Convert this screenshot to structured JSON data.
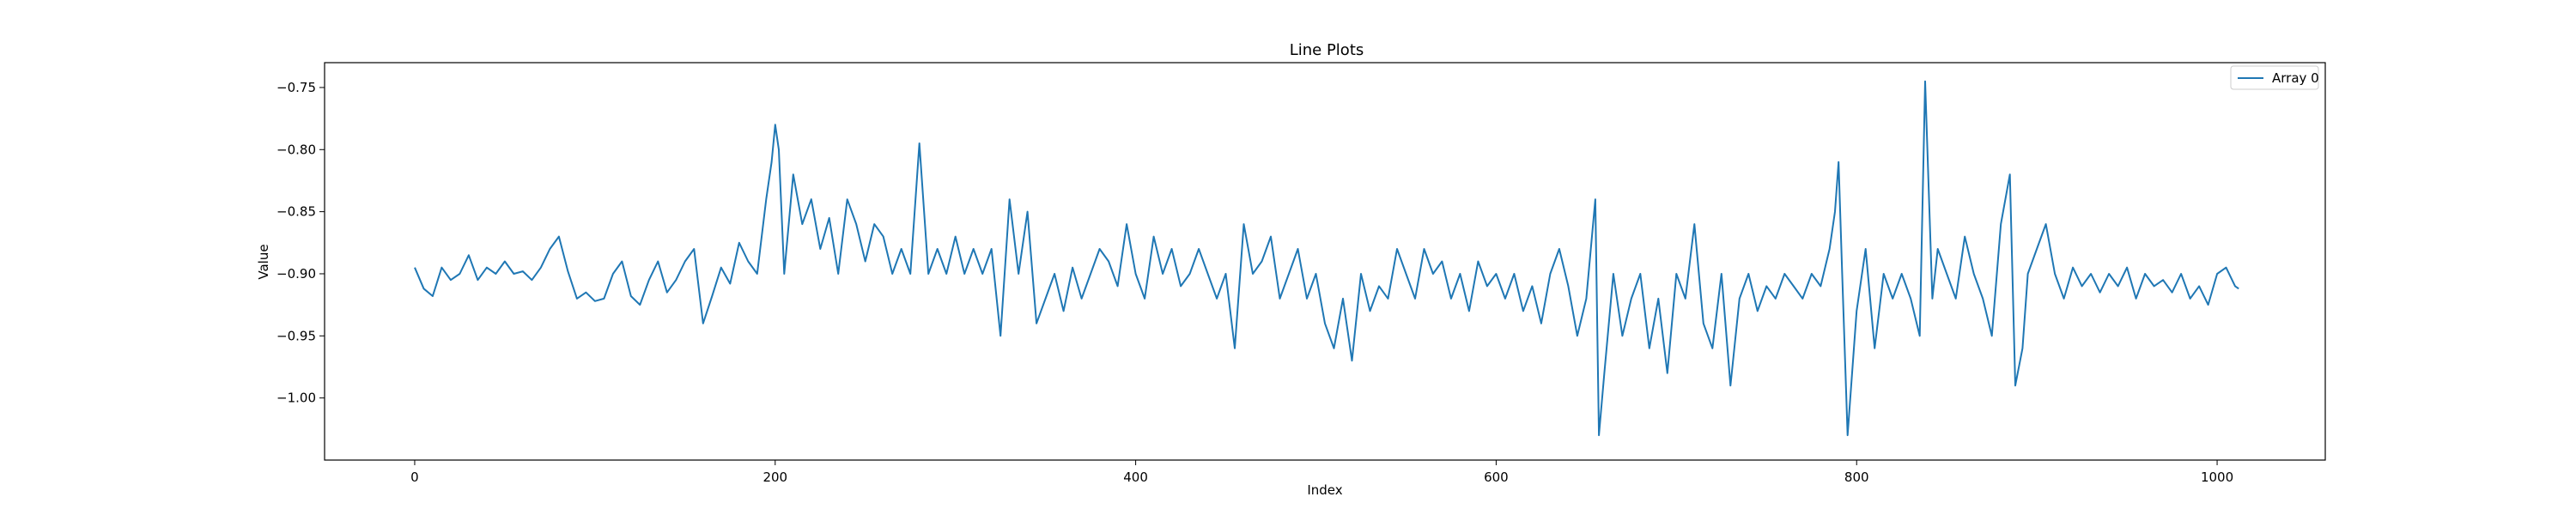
{
  "chart_data": {
    "type": "line",
    "title": "Line Plots",
    "xlabel": "Index",
    "ylabel": "Value",
    "xlim": [
      -50,
      1060
    ],
    "ylim": [
      -1.05,
      -0.73
    ],
    "xticks": [
      0,
      200,
      400,
      600,
      800,
      1000
    ],
    "xtick_labels": [
      "0",
      "200",
      "400",
      "600",
      "800",
      "1000"
    ],
    "yticks": [
      -0.75,
      -0.8,
      -0.85,
      -0.9,
      -0.95,
      -1.0
    ],
    "ytick_labels": [
      "−0.75",
      "−0.80",
      "−0.85",
      "−0.90",
      "−0.95",
      "−1.00"
    ],
    "grid": false,
    "legend_position": "top-right",
    "colors": {
      "series": "#1f77b4"
    },
    "series": [
      {
        "name": "Array 0",
        "points": [
          [
            0,
            -0.895
          ],
          [
            5,
            -0.912
          ],
          [
            10,
            -0.918
          ],
          [
            15,
            -0.895
          ],
          [
            20,
            -0.905
          ],
          [
            25,
            -0.9
          ],
          [
            30,
            -0.885
          ],
          [
            35,
            -0.905
          ],
          [
            40,
            -0.895
          ],
          [
            45,
            -0.9
          ],
          [
            50,
            -0.89
          ],
          [
            55,
            -0.9
          ],
          [
            60,
            -0.898
          ],
          [
            65,
            -0.905
          ],
          [
            70,
            -0.895
          ],
          [
            75,
            -0.88
          ],
          [
            80,
            -0.87
          ],
          [
            85,
            -0.898
          ],
          [
            90,
            -0.92
          ],
          [
            95,
            -0.915
          ],
          [
            100,
            -0.922
          ],
          [
            105,
            -0.92
          ],
          [
            110,
            -0.9
          ],
          [
            115,
            -0.89
          ],
          [
            120,
            -0.918
          ],
          [
            125,
            -0.925
          ],
          [
            130,
            -0.905
          ],
          [
            135,
            -0.89
          ],
          [
            140,
            -0.915
          ],
          [
            145,
            -0.905
          ],
          [
            150,
            -0.89
          ],
          [
            155,
            -0.88
          ],
          [
            160,
            -0.94
          ],
          [
            165,
            -0.918
          ],
          [
            170,
            -0.895
          ],
          [
            175,
            -0.908
          ],
          [
            180,
            -0.875
          ],
          [
            185,
            -0.89
          ],
          [
            190,
            -0.9
          ],
          [
            195,
            -0.84
          ],
          [
            198,
            -0.81
          ],
          [
            200,
            -0.78
          ],
          [
            202,
            -0.8
          ],
          [
            205,
            -0.9
          ],
          [
            210,
            -0.82
          ],
          [
            215,
            -0.86
          ],
          [
            220,
            -0.84
          ],
          [
            225,
            -0.88
          ],
          [
            230,
            -0.855
          ],
          [
            235,
            -0.9
          ],
          [
            240,
            -0.84
          ],
          [
            245,
            -0.86
          ],
          [
            250,
            -0.89
          ],
          [
            255,
            -0.86
          ],
          [
            260,
            -0.87
          ],
          [
            265,
            -0.9
          ],
          [
            270,
            -0.88
          ],
          [
            275,
            -0.9
          ],
          [
            280,
            -0.795
          ],
          [
            285,
            -0.9
          ],
          [
            290,
            -0.88
          ],
          [
            295,
            -0.9
          ],
          [
            300,
            -0.87
          ],
          [
            305,
            -0.9
          ],
          [
            310,
            -0.88
          ],
          [
            315,
            -0.9
          ],
          [
            320,
            -0.88
          ],
          [
            325,
            -0.95
          ],
          [
            330,
            -0.84
          ],
          [
            335,
            -0.9
          ],
          [
            340,
            -0.85
          ],
          [
            345,
            -0.94
          ],
          [
            350,
            -0.92
          ],
          [
            355,
            -0.9
          ],
          [
            360,
            -0.93
          ],
          [
            365,
            -0.895
          ],
          [
            370,
            -0.92
          ],
          [
            375,
            -0.9
          ],
          [
            380,
            -0.88
          ],
          [
            385,
            -0.89
          ],
          [
            390,
            -0.91
          ],
          [
            395,
            -0.86
          ],
          [
            400,
            -0.9
          ],
          [
            405,
            -0.92
          ],
          [
            410,
            -0.87
          ],
          [
            415,
            -0.9
          ],
          [
            420,
            -0.88
          ],
          [
            425,
            -0.91
          ],
          [
            430,
            -0.9
          ],
          [
            435,
            -0.88
          ],
          [
            440,
            -0.9
          ],
          [
            445,
            -0.92
          ],
          [
            450,
            -0.9
          ],
          [
            455,
            -0.96
          ],
          [
            460,
            -0.86
          ],
          [
            465,
            -0.9
          ],
          [
            470,
            -0.89
          ],
          [
            475,
            -0.87
          ],
          [
            480,
            -0.92
          ],
          [
            485,
            -0.9
          ],
          [
            490,
            -0.88
          ],
          [
            495,
            -0.92
          ],
          [
            500,
            -0.9
          ],
          [
            505,
            -0.94
          ],
          [
            510,
            -0.96
          ],
          [
            515,
            -0.92
          ],
          [
            520,
            -0.97
          ],
          [
            525,
            -0.9
          ],
          [
            530,
            -0.93
          ],
          [
            535,
            -0.91
          ],
          [
            540,
            -0.92
          ],
          [
            545,
            -0.88
          ],
          [
            550,
            -0.9
          ],
          [
            555,
            -0.92
          ],
          [
            560,
            -0.88
          ],
          [
            565,
            -0.9
          ],
          [
            570,
            -0.89
          ],
          [
            575,
            -0.92
          ],
          [
            580,
            -0.9
          ],
          [
            585,
            -0.93
          ],
          [
            590,
            -0.89
          ],
          [
            595,
            -0.91
          ],
          [
            600,
            -0.9
          ],
          [
            605,
            -0.92
          ],
          [
            610,
            -0.9
          ],
          [
            615,
            -0.93
          ],
          [
            620,
            -0.91
          ],
          [
            625,
            -0.94
          ],
          [
            630,
            -0.9
          ],
          [
            635,
            -0.88
          ],
          [
            640,
            -0.91
          ],
          [
            645,
            -0.95
          ],
          [
            650,
            -0.92
          ],
          [
            655,
            -0.84
          ],
          [
            657,
            -1.03
          ],
          [
            660,
            -0.98
          ],
          [
            665,
            -0.9
          ],
          [
            670,
            -0.95
          ],
          [
            675,
            -0.92
          ],
          [
            680,
            -0.9
          ],
          [
            685,
            -0.96
          ],
          [
            690,
            -0.92
          ],
          [
            695,
            -0.98
          ],
          [
            700,
            -0.9
          ],
          [
            705,
            -0.92
          ],
          [
            710,
            -0.86
          ],
          [
            715,
            -0.94
          ],
          [
            720,
            -0.96
          ],
          [
            725,
            -0.9
          ],
          [
            730,
            -0.99
          ],
          [
            735,
            -0.92
          ],
          [
            740,
            -0.9
          ],
          [
            745,
            -0.93
          ],
          [
            750,
            -0.91
          ],
          [
            755,
            -0.92
          ],
          [
            760,
            -0.9
          ],
          [
            765,
            -0.91
          ],
          [
            770,
            -0.92
          ],
          [
            775,
            -0.9
          ],
          [
            780,
            -0.91
          ],
          [
            785,
            -0.88
          ],
          [
            788,
            -0.85
          ],
          [
            790,
            -0.81
          ],
          [
            792,
            -0.9
          ],
          [
            795,
            -1.03
          ],
          [
            800,
            -0.93
          ],
          [
            805,
            -0.88
          ],
          [
            810,
            -0.96
          ],
          [
            815,
            -0.9
          ],
          [
            820,
            -0.92
          ],
          [
            825,
            -0.9
          ],
          [
            830,
            -0.92
          ],
          [
            835,
            -0.95
          ],
          [
            838,
            -0.745
          ],
          [
            842,
            -0.92
          ],
          [
            845,
            -0.88
          ],
          [
            850,
            -0.9
          ],
          [
            855,
            -0.92
          ],
          [
            860,
            -0.87
          ],
          [
            865,
            -0.9
          ],
          [
            870,
            -0.92
          ],
          [
            875,
            -0.95
          ],
          [
            880,
            -0.86
          ],
          [
            885,
            -0.82
          ],
          [
            888,
            -0.99
          ],
          [
            892,
            -0.96
          ],
          [
            895,
            -0.9
          ],
          [
            900,
            -0.88
          ],
          [
            905,
            -0.86
          ],
          [
            910,
            -0.9
          ],
          [
            915,
            -0.92
          ],
          [
            920,
            -0.895
          ],
          [
            925,
            -0.91
          ],
          [
            930,
            -0.9
          ],
          [
            935,
            -0.915
          ],
          [
            940,
            -0.9
          ],
          [
            945,
            -0.91
          ],
          [
            950,
            -0.895
          ],
          [
            955,
            -0.92
          ],
          [
            960,
            -0.9
          ],
          [
            965,
            -0.91
          ],
          [
            970,
            -0.905
          ],
          [
            975,
            -0.915
          ],
          [
            980,
            -0.9
          ],
          [
            985,
            -0.92
          ],
          [
            990,
            -0.91
          ],
          [
            995,
            -0.925
          ],
          [
            1000,
            -0.9
          ],
          [
            1005,
            -0.895
          ],
          [
            1010,
            -0.91
          ],
          [
            1012,
            -0.912
          ]
        ]
      }
    ]
  }
}
